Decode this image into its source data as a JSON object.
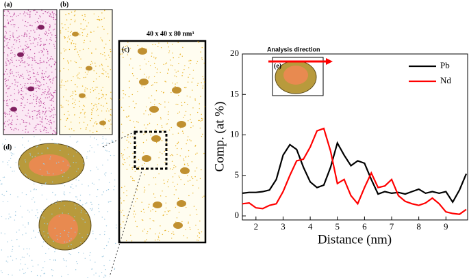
{
  "panels": {
    "a": "(a)",
    "b": "(b)",
    "c": "(c)",
    "d": "(d)",
    "e": "(e)",
    "size": "40 x 40 x 80 nm³",
    "arrow": "Analysis direction"
  },
  "chart_data": {
    "type": "line",
    "xlabel": "Distance (nm)",
    "ylabel": "Comp. (at %)",
    "x": [
      1.5,
      1.75,
      2,
      2.25,
      2.5,
      2.75,
      3,
      3.25,
      3.5,
      3.75,
      4,
      4.25,
      4.5,
      4.75,
      5,
      5.25,
      5.5,
      5.75,
      6,
      6.25,
      6.5,
      6.75,
      7,
      7.25,
      7.5,
      7.75,
      8,
      8.25,
      8.5,
      8.75,
      9,
      9.25,
      9.5,
      9.75
    ],
    "series": [
      {
        "name": "Pb",
        "color": "#000000",
        "values": [
          2.8,
          2.9,
          2.9,
          3.0,
          3.2,
          4.5,
          7.5,
          8.8,
          8.2,
          6.0,
          4.2,
          3.5,
          3.8,
          6.0,
          9.0,
          7.5,
          6.2,
          6.8,
          6.5,
          4.5,
          2.7,
          3.0,
          2.8,
          2.9,
          2.7,
          3.0,
          3.3,
          2.8,
          3.0,
          2.8,
          3.0,
          1.7,
          3.2,
          5.2
        ]
      },
      {
        "name": "Nd",
        "color": "#ff0000",
        "values": [
          1.5,
          1.6,
          1.0,
          0.9,
          1.3,
          1.5,
          3.0,
          5.0,
          6.8,
          7.0,
          8.5,
          10.5,
          10.8,
          8.0,
          4.0,
          4.5,
          2.5,
          1.5,
          3.5,
          5.3,
          3.5,
          3.7,
          4.5,
          2.5,
          1.8,
          1.5,
          1.3,
          1.6,
          2.2,
          1.5,
          0.5,
          0.3,
          0.2,
          0.8
        ]
      }
    ],
    "xlim": [
      1.5,
      9.8
    ],
    "xticks": [
      2,
      3,
      4,
      5,
      6,
      7,
      8,
      9
    ],
    "ylim": [
      -0.5,
      20
    ],
    "yticks": [
      0,
      5,
      10,
      15,
      20
    ],
    "legend": "upper-right"
  }
}
